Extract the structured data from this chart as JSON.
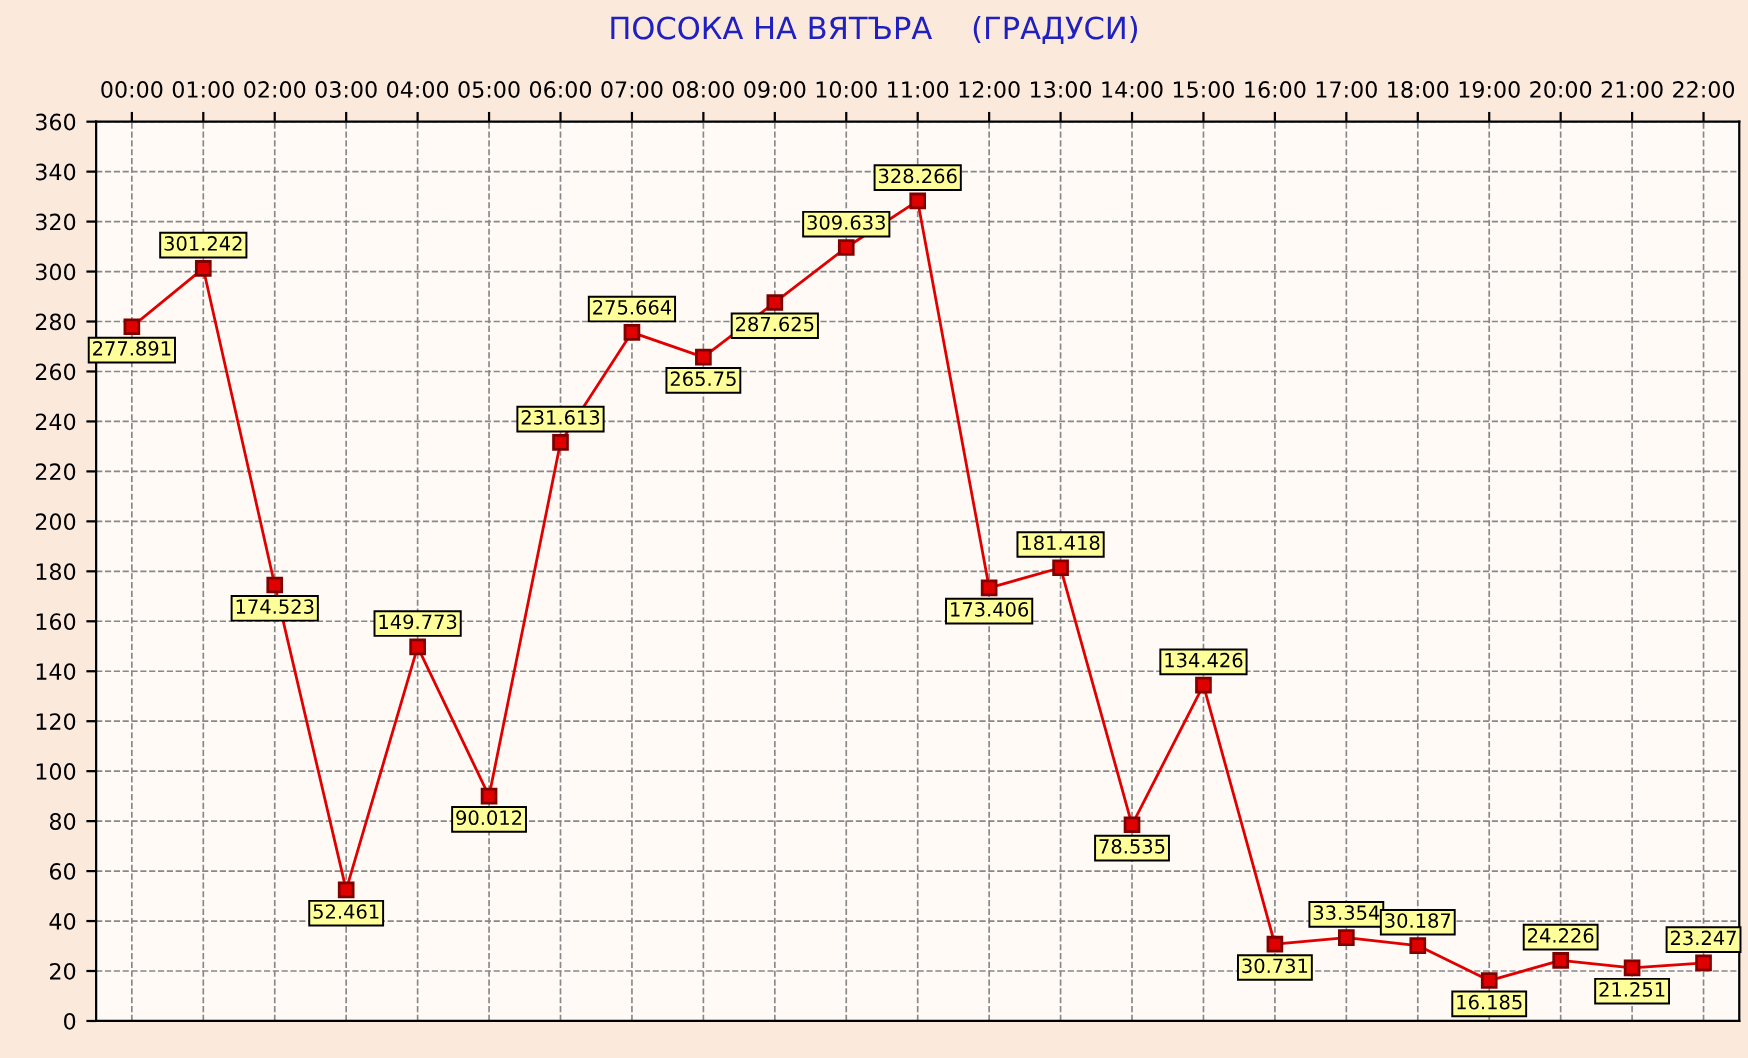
{
  "chart_data": {
    "type": "line",
    "title": "ПОСОКА НА ВЯТЪРА    (ГРАДУСИ)",
    "categories": [
      "00:00",
      "01:00",
      "02:00",
      "03:00",
      "04:00",
      "05:00",
      "06:00",
      "07:00",
      "08:00",
      "09:00",
      "10:00",
      "11:00",
      "12:00",
      "13:00",
      "14:00",
      "15:00",
      "16:00",
      "17:00",
      "18:00",
      "19:00",
      "20:00",
      "21:00",
      "22:00"
    ],
    "series": [
      {
        "color": "#e00000",
        "values": [
          277.891,
          301.242,
          174.523,
          52.461,
          149.773,
          90.012,
          231.613,
          275.664,
          265.75,
          287.625,
          309.633,
          328.266,
          173.406,
          181.418,
          78.535,
          134.426,
          30.731,
          33.354,
          30.187,
          16.185,
          24.226,
          21.251,
          23.247
        ]
      }
    ],
    "ylim": [
      0,
      360
    ],
    "yticks": [
      0,
      20,
      40,
      60,
      80,
      100,
      120,
      140,
      160,
      180,
      200,
      220,
      240,
      260,
      280,
      300,
      320,
      340,
      360
    ],
    "grid": true,
    "marker": "square",
    "line_style": "solid",
    "data_labels": true,
    "legend": false
  }
}
